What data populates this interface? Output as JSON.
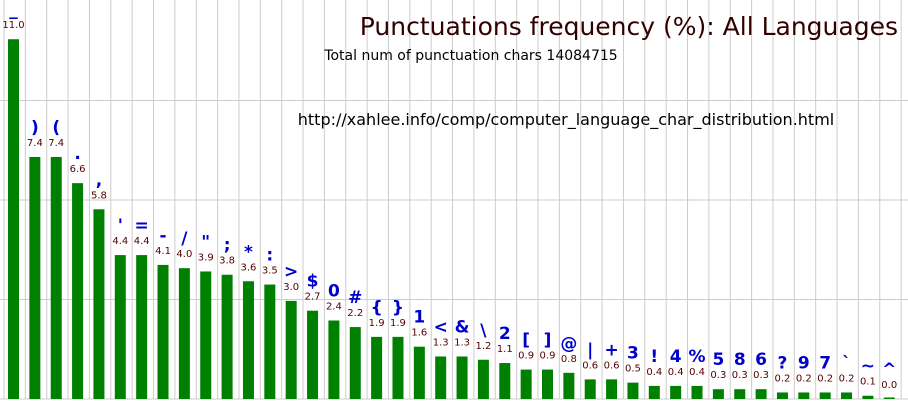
{
  "chart_data": {
    "type": "bar",
    "title": "Punctuations frequency (%): All Languages",
    "subtitle": "Total num of punctuation chars 14084715",
    "annotation": "http://xahlee.info/comp/computer_language_char_distribution.html",
    "categories": [
      "_",
      ")",
      "(",
      ".",
      ",",
      "'",
      "=",
      "-",
      "/",
      "\"",
      ";",
      "*",
      ":",
      ">",
      "$",
      "0",
      "#",
      "{",
      "}",
      "1",
      "<",
      "&",
      "\\",
      "2",
      "[",
      "]",
      "@",
      "|",
      "+",
      "3",
      "!",
      "4",
      "%",
      "5",
      "8",
      "6",
      "?",
      "9",
      "7",
      "`",
      "~",
      "^"
    ],
    "values": [
      11.0,
      7.4,
      7.4,
      6.6,
      5.8,
      4.4,
      4.4,
      4.1,
      4.0,
      3.9,
      3.8,
      3.6,
      3.5,
      3.0,
      2.7,
      2.4,
      2.2,
      1.9,
      1.9,
      1.6,
      1.3,
      1.3,
      1.2,
      1.1,
      0.9,
      0.9,
      0.8,
      0.6,
      0.6,
      0.5,
      0.4,
      0.4,
      0.4,
      0.3,
      0.3,
      0.3,
      0.2,
      0.2,
      0.2,
      0.2,
      0.1,
      0.0
    ],
    "value_labels": [
      "11.0",
      "7.4",
      "7.4",
      "6.6",
      "5.8",
      "4.4",
      "4.4",
      "4.1",
      "4.0",
      "3.9",
      "3.8",
      "3.6",
      "3.5",
      "3.0",
      "2.7",
      "2.4",
      "2.2",
      "1.9",
      "1.9",
      "1.6",
      "1.3",
      "1.3",
      "1.2",
      "1.1",
      "0.9",
      "0.9",
      "0.8",
      "0.6",
      "0.6",
      "0.5",
      "0.4",
      "0.4",
      "0.4",
      "0.3",
      "0.3",
      "0.3",
      "0.2",
      "0.2",
      "0.2",
      "0.2",
      "0.1",
      "0.0"
    ],
    "ylim": [
      0,
      12.2
    ],
    "grid": true,
    "bar_color": "#008000",
    "label_color": "#0000cc",
    "value_label_color": "#550000",
    "title_color": "#330000"
  }
}
